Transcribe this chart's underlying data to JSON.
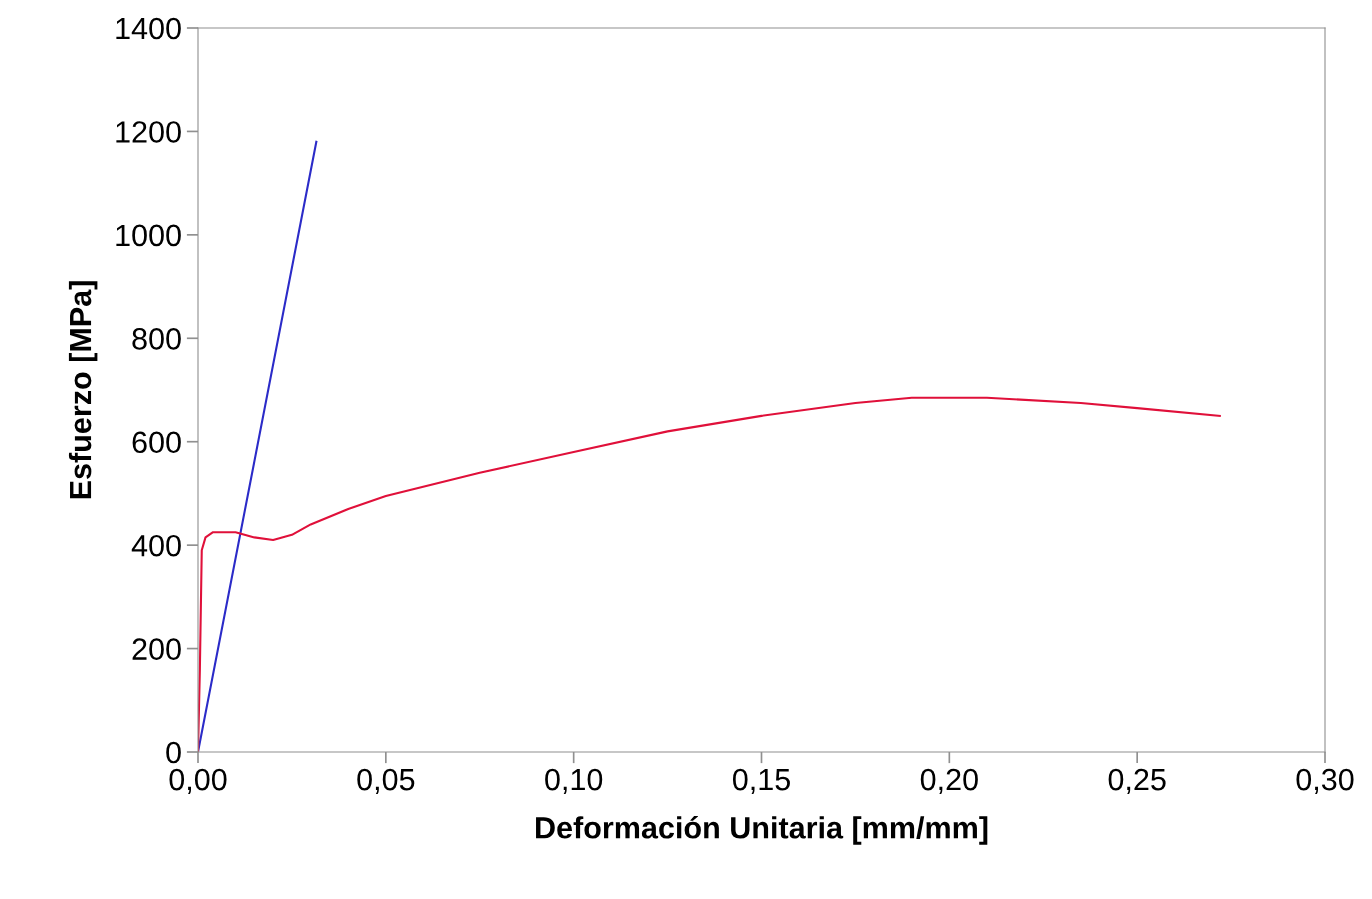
{
  "chart_data": {
    "type": "line",
    "xlabel": "Deformación Unitaria [mm/mm]",
    "ylabel": "Esfuerzo [MPa]",
    "xlim": [
      0,
      0.3
    ],
    "xticks": [
      {
        "value": 0,
        "label": "0,00"
      },
      {
        "value": 0.05,
        "label": "0,05"
      },
      {
        "value": 0.1,
        "label": "0,10"
      },
      {
        "value": 0.15,
        "label": "0,15"
      },
      {
        "value": 0.2,
        "label": "0,20"
      },
      {
        "value": 0.25,
        "label": "0,25"
      },
      {
        "value": 0.3,
        "label": "0,30"
      }
    ],
    "ylim": [
      0,
      1400
    ],
    "yticks": [
      0,
      200,
      400,
      600,
      800,
      1000,
      1200,
      1400
    ],
    "grid": false,
    "marker": "none",
    "line_style": "solid",
    "series": [
      {
        "color": "#2b2bc8",
        "x": [
          0,
          0.0315
        ],
        "values": [
          0,
          1180
        ]
      },
      {
        "color": "#e0103a",
        "x": [
          0,
          0.0005,
          0.001,
          0.002,
          0.004,
          0.01,
          0.015,
          0.02,
          0.025,
          0.03,
          0.04,
          0.05,
          0.075,
          0.1,
          0.125,
          0.15,
          0.175,
          0.19,
          0.21,
          0.235,
          0.25,
          0.272
        ],
        "values": [
          0,
          160,
          390,
          415,
          425,
          425,
          415,
          410,
          420,
          440,
          470,
          495,
          540,
          580,
          620,
          650,
          675,
          685,
          685,
          675,
          665,
          650
        ]
      }
    ]
  }
}
